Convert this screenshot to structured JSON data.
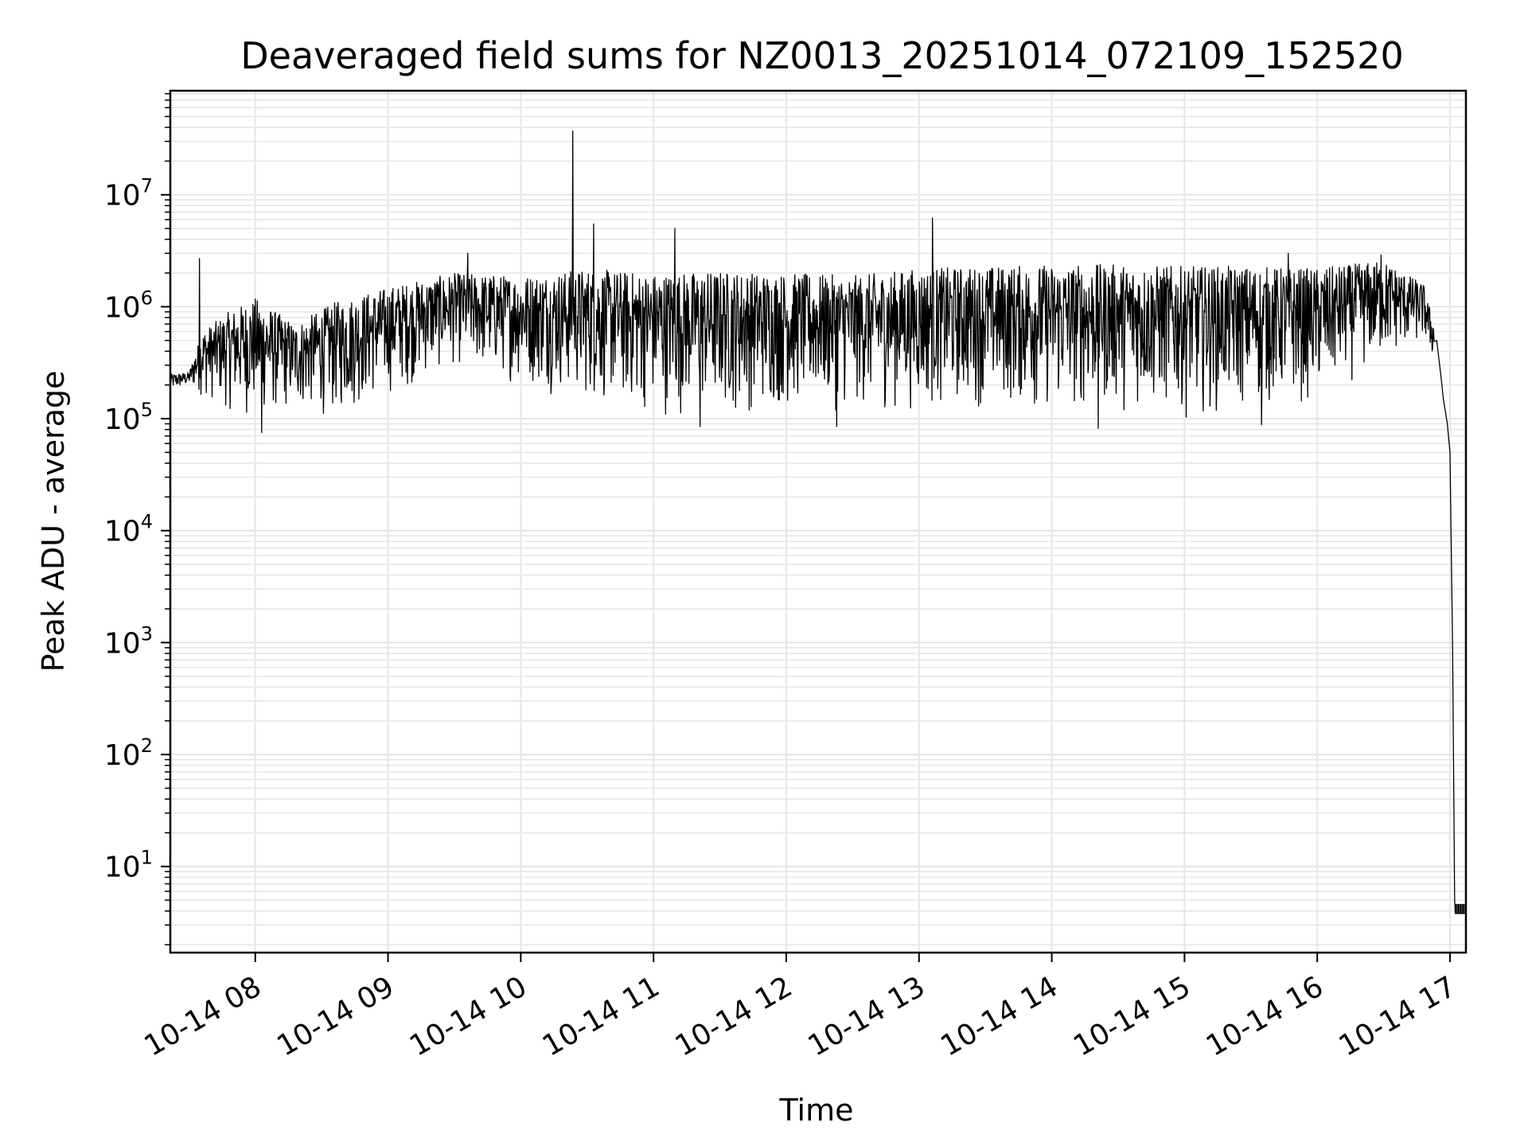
{
  "chart_data": {
    "type": "line",
    "title": "Deaveraged field sums for NZ0013_20251014_072109_152520",
    "xlabel": "Time",
    "ylabel": "Peak ADU - average",
    "yscale": "log",
    "grid": true,
    "line_color": "#000000",
    "grid_color": "#e6e6e6",
    "x_unit": "hours since 2025-10-14 00:00",
    "xlim": [
      7.36,
      17.12
    ],
    "ylim": [
      1.7,
      85000000
    ],
    "x_ticks": [
      8,
      9,
      10,
      11,
      12,
      13,
      14,
      15,
      16,
      17
    ],
    "x_tick_labels": [
      "10-14 08",
      "10-14 09",
      "10-14 10",
      "10-14 11",
      "10-14 12",
      "10-14 13",
      "10-14 14",
      "10-14 15",
      "10-14 16",
      "10-14 17"
    ],
    "y_ticks": [
      10,
      100,
      1000,
      10000,
      100000,
      1000000,
      10000000
    ],
    "y_tick_base": "10",
    "y_tick_exponents": [
      "1",
      "2",
      "3",
      "4",
      "5",
      "6",
      "7"
    ],
    "series": [
      {
        "name": "deaveraged field sum",
        "envelope": [
          {
            "x": 7.36,
            "low": 170000,
            "high": 250000
          },
          {
            "x": 7.5,
            "low": 190000,
            "high": 260000
          },
          {
            "x": 7.6,
            "low": 150000,
            "high": 600000
          },
          {
            "x": 7.8,
            "low": 110000,
            "high": 900000
          },
          {
            "x": 8.0,
            "low": 90000,
            "high": 1200000
          },
          {
            "x": 8.3,
            "low": 110000,
            "high": 700000
          },
          {
            "x": 8.6,
            "low": 95000,
            "high": 1100000
          },
          {
            "x": 9.0,
            "low": 150000,
            "high": 1500000
          },
          {
            "x": 9.5,
            "low": 280000,
            "high": 2000000
          },
          {
            "x": 10.0,
            "low": 190000,
            "high": 1900000
          },
          {
            "x": 10.5,
            "low": 130000,
            "high": 2200000
          },
          {
            "x": 11.0,
            "low": 100000,
            "high": 2000000
          },
          {
            "x": 11.5,
            "low": 100000,
            "high": 2100000
          },
          {
            "x": 12.0,
            "low": 110000,
            "high": 2000000
          },
          {
            "x": 12.5,
            "low": 110000,
            "high": 1900000
          },
          {
            "x": 13.0,
            "low": 110000,
            "high": 2200000
          },
          {
            "x": 13.5,
            "low": 120000,
            "high": 2300000
          },
          {
            "x": 14.0,
            "low": 100000,
            "high": 2400000
          },
          {
            "x": 14.5,
            "low": 110000,
            "high": 2400000
          },
          {
            "x": 15.0,
            "low": 100000,
            "high": 2300000
          },
          {
            "x": 15.5,
            "low": 110000,
            "high": 2300000
          },
          {
            "x": 16.0,
            "low": 130000,
            "high": 2200000
          },
          {
            "x": 16.5,
            "low": 300000,
            "high": 2600000
          },
          {
            "x": 16.8,
            "low": 450000,
            "high": 1600000
          },
          {
            "x": 16.88,
            "low": 300000,
            "high": 700000
          }
        ],
        "tail": [
          {
            "x": 16.9,
            "y": 500000
          },
          {
            "x": 16.93,
            "y": 250000
          },
          {
            "x": 16.95,
            "y": 150000
          },
          {
            "x": 16.98,
            "y": 90000
          },
          {
            "x": 17.0,
            "y": 50000
          },
          {
            "x": 17.02,
            "y": 800
          },
          {
            "x": 17.035,
            "y": 5
          },
          {
            "x": 17.04,
            "y": 3.8
          },
          {
            "x": 17.12,
            "y": 3.8
          }
        ],
        "spikes": [
          {
            "x": 7.58,
            "y": 2700000
          },
          {
            "x": 10.39,
            "y": 37000000
          },
          {
            "x": 10.55,
            "y": 5500000
          },
          {
            "x": 11.16,
            "y": 5000000
          },
          {
            "x": 13.1,
            "y": 6200000
          },
          {
            "x": 9.6,
            "y": 3000000
          },
          {
            "x": 15.78,
            "y": 3000000
          },
          {
            "x": 16.48,
            "y": 2900000
          },
          {
            "x": 11.35,
            "y": 85000
          },
          {
            "x": 12.38,
            "y": 85000
          },
          {
            "x": 14.35,
            "y": 82000
          },
          {
            "x": 15.58,
            "y": 88000
          },
          {
            "x": 8.05,
            "y": 75000
          }
        ]
      }
    ]
  }
}
